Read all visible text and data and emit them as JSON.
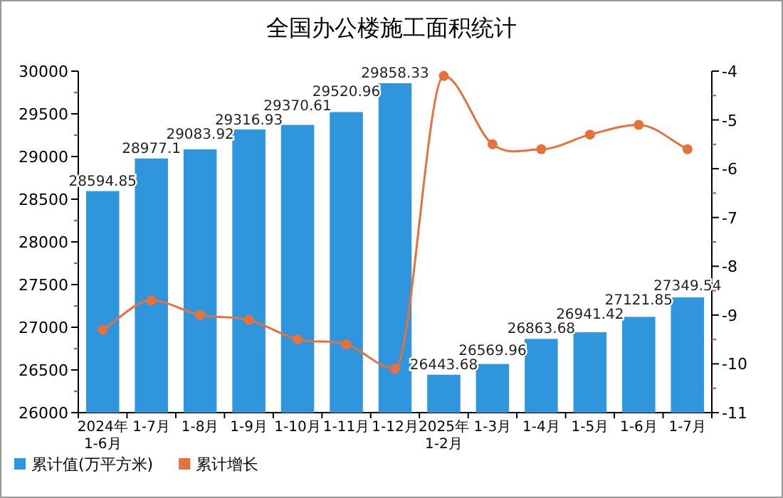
{
  "chart_data": {
    "type": "bar",
    "title": "全国办公楼施工面积统计",
    "categories": [
      "2024年\n1-6月",
      "1-7月",
      "1-8月",
      "1-9月",
      "1-10月",
      "1-11月",
      "1-12月",
      "2025年\n1-2月",
      "1-3月",
      "1-4月",
      "1-5月",
      "1-6月",
      "1-7月"
    ],
    "series": [
      {
        "name": "累计值(万平方米)",
        "color": "#2f96dd",
        "values": [
          28594.85,
          28977.1,
          29083.92,
          29316.93,
          29370.61,
          29520.96,
          29858.33,
          26443.68,
          26569.96,
          26863.68,
          26941.42,
          27121.85,
          27349.54
        ],
        "value_labels": [
          "28594.85",
          "28977.1",
          "29083.92",
          "29316.93",
          "29370.61",
          "29520.96",
          "29858.33",
          "26443.68",
          "26569.96",
          "26863.68",
          "26941.42",
          "27121.85",
          "27349.54"
        ]
      },
      {
        "name": "累计增长",
        "type": "line",
        "axis": "y2",
        "color": "#e8703a",
        "values": [
          -9.3,
          -8.7,
          -9.0,
          -9.1,
          -9.5,
          -9.6,
          -10.1,
          -4.1,
          -5.5,
          -5.6,
          -5.3,
          -5.1,
          -5.6
        ]
      }
    ],
    "ylim": [
      26000,
      30000
    ],
    "yticks": [
      26000,
      {
        "value": 26250,
        "label": null
      },
      26500,
      {
        "value": 26750,
        "label": null
      },
      27000,
      {
        "value": 27250,
        "label": null
      },
      27500,
      {
        "value": 27750,
        "label": null
      },
      28000,
      {
        "value": 28250,
        "label": null
      },
      28500,
      {
        "value": 28750,
        "label": null
      },
      29000,
      {
        "value": 29250,
        "label": null
      },
      29500,
      {
        "value": 29750,
        "label": null
      },
      30000
    ],
    "y2lim": [
      -11,
      -4
    ],
    "y2ticks": [
      -11,
      {
        "value": -10.5,
        "label": null
      },
      -10,
      {
        "value": -9.5,
        "label": null
      },
      -9,
      {
        "value": -8.5,
        "label": null
      },
      -8,
      {
        "value": -7.5,
        "label": null
      },
      -7,
      {
        "value": -6.5,
        "label": null
      },
      -6,
      {
        "value": -5.5,
        "label": null
      },
      -5,
      {
        "value": -4.5,
        "label": null
      },
      -4
    ],
    "marker": "circle",
    "legend": "bottom left",
    "grid": false
  }
}
